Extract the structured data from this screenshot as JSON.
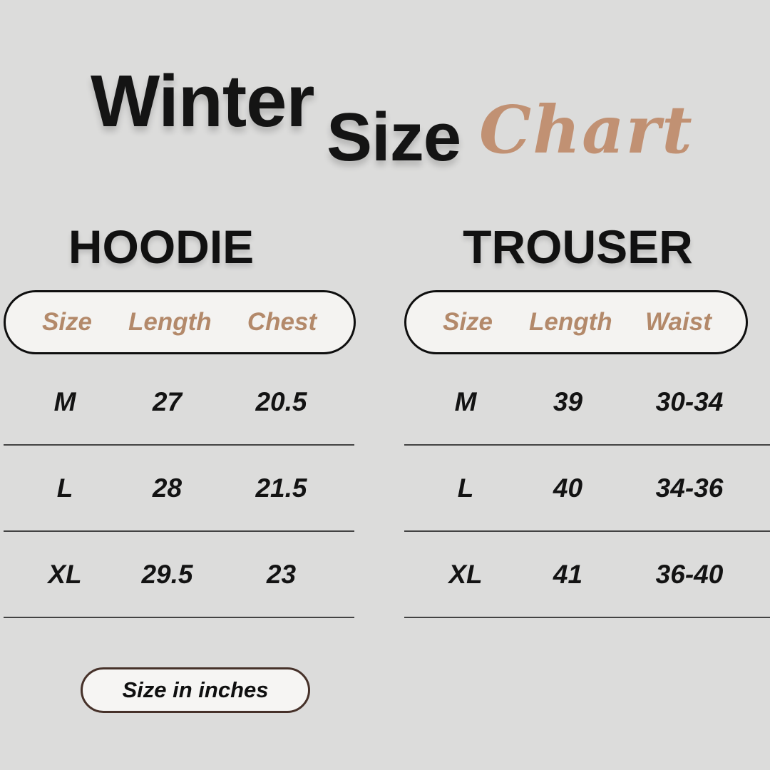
{
  "title": {
    "winter": "Winter",
    "size": "Size",
    "chart": "Chart"
  },
  "chart_data": [
    {
      "type": "table",
      "title": "HOODIE",
      "columns": [
        "Size",
        "Length",
        "Chest"
      ],
      "rows": [
        [
          "M",
          "27",
          "20.5"
        ],
        [
          "L",
          "28",
          "21.5"
        ],
        [
          "XL",
          "29.5",
          "23"
        ]
      ]
    },
    {
      "type": "table",
      "title": "TROUSER",
      "columns": [
        "Size",
        "Length",
        "Waist"
      ],
      "rows": [
        [
          "M",
          "39",
          "30-34"
        ],
        [
          "L",
          "40",
          "34-36"
        ],
        [
          "XL",
          "41",
          "36-40"
        ]
      ]
    }
  ],
  "footer": {
    "badge_label": "Size in inches"
  },
  "colors": {
    "background": "#dcdcdb",
    "text_black": "#131313",
    "accent_tan": "#b3896a",
    "script_tan": "#c19173",
    "pill_fill": "#f4f3f1",
    "pill_border": "#0e0e0e",
    "badge_border": "#463129",
    "divider": "#434343"
  }
}
